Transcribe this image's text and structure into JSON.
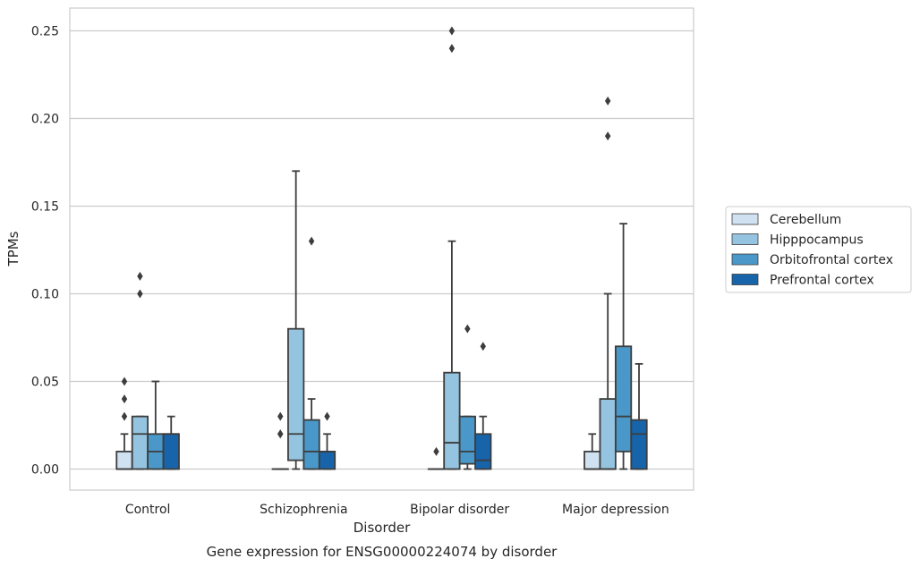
{
  "caption": "Gene expression for ENSG00000224074 by disorder",
  "chart_data": {
    "type": "box",
    "xlabel": "Disorder",
    "ylabel": "TPMs",
    "ylim": [
      -0.012,
      0.263
    ],
    "yticks": [
      "0.00",
      "0.05",
      "0.10",
      "0.15",
      "0.20",
      "0.25"
    ],
    "grid": "horizontal",
    "legend_position": "right",
    "categories": [
      "Control",
      "Schizophrenia",
      "Bipolar disorder",
      "Major depression"
    ],
    "series": [
      {
        "name": "Cerebellum",
        "color": "#d0e1f2",
        "boxes": [
          {
            "whislo": 0,
            "q1": 0,
            "med": 0,
            "q3": 0.01,
            "whishi": 0.02,
            "fliers": [
              0.03,
              0.04,
              0.05
            ]
          },
          {
            "whislo": 0,
            "q1": 0,
            "med": 0,
            "q3": 0,
            "whishi": 0,
            "fliers": [
              0.02,
              0.02,
              0.03
            ]
          },
          {
            "whislo": 0,
            "q1": 0,
            "med": 0,
            "q3": 0,
            "whishi": 0,
            "fliers": [
              0.01
            ]
          },
          {
            "whislo": 0,
            "q1": 0,
            "med": 0,
            "q3": 0.01,
            "whishi": 0.02,
            "fliers": []
          }
        ]
      },
      {
        "name": "Hipppocampus",
        "color": "#94c4df",
        "boxes": [
          {
            "whislo": 0,
            "q1": 0,
            "med": 0.02,
            "q3": 0.03,
            "whishi": 0.03,
            "fliers": [
              0.1,
              0.11
            ]
          },
          {
            "whislo": 0,
            "q1": 0.005,
            "med": 0.02,
            "q3": 0.08,
            "whishi": 0.17,
            "fliers": []
          },
          {
            "whislo": 0,
            "q1": 0,
            "med": 0.015,
            "q3": 0.055,
            "whishi": 0.13,
            "fliers": [
              0.24,
              0.25
            ]
          },
          {
            "whislo": 0,
            "q1": 0,
            "med": 0,
            "q3": 0.04,
            "whishi": 0.1,
            "fliers": [
              0.19,
              0.21
            ]
          }
        ]
      },
      {
        "name": "Orbitofrontal cortex",
        "color": "#4a98c9",
        "boxes": [
          {
            "whislo": 0,
            "q1": 0,
            "med": 0.01,
            "q3": 0.02,
            "whishi": 0.05,
            "fliers": []
          },
          {
            "whislo": 0,
            "q1": 0,
            "med": 0.01,
            "q3": 0.028,
            "whishi": 0.04,
            "fliers": [
              0.13
            ]
          },
          {
            "whislo": 0,
            "q1": 0.003,
            "med": 0.01,
            "q3": 0.03,
            "whishi": 0.03,
            "fliers": [
              0.08
            ]
          },
          {
            "whislo": 0,
            "q1": 0.01,
            "med": 0.03,
            "q3": 0.07,
            "whishi": 0.14,
            "fliers": []
          }
        ]
      },
      {
        "name": "Prefrontal cortex",
        "color": "#1764ab",
        "boxes": [
          {
            "whislo": 0,
            "q1": 0,
            "med": 0.02,
            "q3": 0.02,
            "whishi": 0.03,
            "fliers": []
          },
          {
            "whislo": 0,
            "q1": 0,
            "med": 0.01,
            "q3": 0.01,
            "whishi": 0.02,
            "fliers": [
              0.03
            ]
          },
          {
            "whislo": 0,
            "q1": 0,
            "med": 0.005,
            "q3": 0.02,
            "whishi": 0.03,
            "fliers": [
              0.07
            ]
          },
          {
            "whislo": 0,
            "q1": 0,
            "med": 0.02,
            "q3": 0.028,
            "whishi": 0.06,
            "fliers": []
          }
        ]
      }
    ]
  }
}
